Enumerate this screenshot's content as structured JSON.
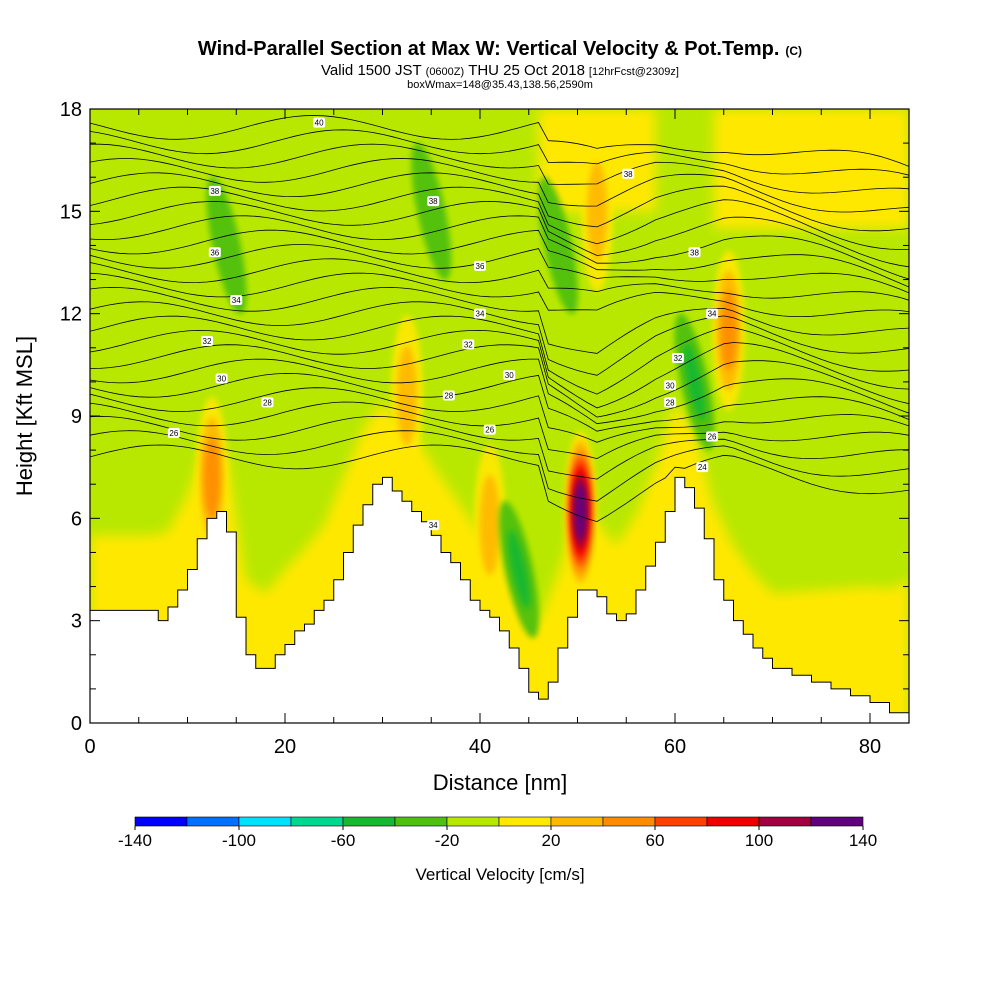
{
  "title": {
    "main": "Wind-Parallel Section at Max W: Vertical Velocity & Pot.Temp.",
    "copyright": "(C)",
    "valid_prefix": "Valid 1500 JST",
    "valid_z": "(0600Z)",
    "valid_date": "THU 25 Oct 2018",
    "forecast": "[12hrFcst@2309z]",
    "box": "boxWmax=148@35.43,138.56,2590m"
  },
  "chart_data": {
    "type": "heatmap",
    "xlabel": "Distance [nm]",
    "ylabel": "Height [Kft MSL]",
    "xlim": [
      0,
      84
    ],
    "ylim": [
      0,
      18
    ],
    "xticks": [
      "0",
      "20",
      "40",
      "60",
      "80"
    ],
    "yticks": [
      "0",
      "3",
      "6",
      "9",
      "12",
      "15",
      "18"
    ],
    "terrain": {
      "x": [
        0,
        6,
        7,
        8,
        9,
        10,
        11,
        12,
        13,
        14,
        15,
        16,
        17,
        18,
        19,
        20,
        21,
        22,
        23,
        24,
        25,
        26,
        27,
        28,
        29,
        30,
        31,
        32,
        33,
        34,
        35,
        36,
        37,
        38,
        39,
        40,
        41,
        42,
        43,
        44,
        45,
        46,
        47,
        48,
        49,
        50,
        51,
        52,
        53,
        54,
        55,
        56,
        57,
        58,
        59,
        60,
        61,
        62,
        63,
        64,
        65,
        66,
        67,
        68,
        69,
        70,
        72,
        74,
        76,
        78,
        80,
        82,
        84
      ],
      "height": [
        3.3,
        3.3,
        3.0,
        3.4,
        3.9,
        4.5,
        5.4,
        6.0,
        6.2,
        5.6,
        3.1,
        2.0,
        1.6,
        1.6,
        2.0,
        2.3,
        2.7,
        2.9,
        3.3,
        3.6,
        4.2,
        5.0,
        5.8,
        6.4,
        7.0,
        7.2,
        6.8,
        6.5,
        6.2,
        5.9,
        5.5,
        5.0,
        4.7,
        4.2,
        3.6,
        3.3,
        3.1,
        2.7,
        2.2,
        1.6,
        0.9,
        0.7,
        1.2,
        2.2,
        3.1,
        3.9,
        3.9,
        3.7,
        3.2,
        3.0,
        3.2,
        3.9,
        4.6,
        5.3,
        6.2,
        7.2,
        6.9,
        6.3,
        5.4,
        4.2,
        3.6,
        3.0,
        2.6,
        2.2,
        1.9,
        1.6,
        1.4,
        1.2,
        1.0,
        0.8,
        0.6,
        0.3,
        0.3
      ]
    },
    "updrafts": [
      {
        "x": 50.3,
        "y": 6.2,
        "peak_cm_s": 148
      },
      {
        "x": 12.5,
        "y": 7.2,
        "peak_cm_s": 30
      },
      {
        "x": 32.5,
        "y": 9.6,
        "peak_cm_s": 25
      },
      {
        "x": 41.0,
        "y": 5.8,
        "peak_cm_s": 25
      },
      {
        "x": 52.0,
        "y": 15.0,
        "peak_cm_s": 25
      },
      {
        "x": 65.5,
        "y": 11.5,
        "peak_cm_s": 30
      }
    ],
    "downdrafts": [
      {
        "x": 44.0,
        "y": 4.5,
        "peak_cm_s": -40
      },
      {
        "x": 48.0,
        "y": 14.0,
        "peak_cm_s": -30
      },
      {
        "x": 35.0,
        "y": 15.0,
        "peak_cm_s": -30
      },
      {
        "x": 62.0,
        "y": 10.0,
        "peak_cm_s": -40
      },
      {
        "x": 14.0,
        "y": 14.0,
        "peak_cm_s": -30
      }
    ],
    "isentrope_labels": [
      {
        "text": "40",
        "x": 23.5,
        "y": 17.6
      },
      {
        "text": "38",
        "x": 12.8,
        "y": 15.6
      },
      {
        "text": "38",
        "x": 35.2,
        "y": 15.3
      },
      {
        "text": "38",
        "x": 55.2,
        "y": 16.1
      },
      {
        "text": "38",
        "x": 62.0,
        "y": 13.8
      },
      {
        "text": "36",
        "x": 12.8,
        "y": 13.8
      },
      {
        "text": "36",
        "x": 40.0,
        "y": 13.4
      },
      {
        "text": "34",
        "x": 15.0,
        "y": 12.4
      },
      {
        "text": "34",
        "x": 40.0,
        "y": 12.0
      },
      {
        "text": "34",
        "x": 63.8,
        "y": 12.0
      },
      {
        "text": "32",
        "x": 12.0,
        "y": 11.2
      },
      {
        "text": "32",
        "x": 38.8,
        "y": 11.1
      },
      {
        "text": "32",
        "x": 60.3,
        "y": 10.7
      },
      {
        "text": "30",
        "x": 13.5,
        "y": 10.1
      },
      {
        "text": "30",
        "x": 43.0,
        "y": 10.2
      },
      {
        "text": "30",
        "x": 59.5,
        "y": 9.9
      },
      {
        "text": "28",
        "x": 18.2,
        "y": 9.4
      },
      {
        "text": "28",
        "x": 36.8,
        "y": 9.6
      },
      {
        "text": "28",
        "x": 59.5,
        "y": 9.4
      },
      {
        "text": "26",
        "x": 8.6,
        "y": 8.5
      },
      {
        "text": "26",
        "x": 41.0,
        "y": 8.6
      },
      {
        "text": "26",
        "x": 63.8,
        "y": 8.4
      },
      {
        "text": "24",
        "x": 62.8,
        "y": 7.5
      },
      {
        "text": "34",
        "x": 35.2,
        "y": 5.8
      }
    ]
  },
  "colorbar": {
    "label": "Vertical Velocity [cm/s]",
    "ticks": [
      "-140",
      "-100",
      "-60",
      "-20",
      "20",
      "60",
      "100",
      "140"
    ],
    "colors": [
      "#0000ff",
      "#0070ff",
      "#00e0ff",
      "#00d890",
      "#18b830",
      "#50c010",
      "#b8e800",
      "#ffe800",
      "#ffb800",
      "#ff8c00",
      "#ff4000",
      "#ee0000",
      "#a00040",
      "#600080"
    ]
  }
}
